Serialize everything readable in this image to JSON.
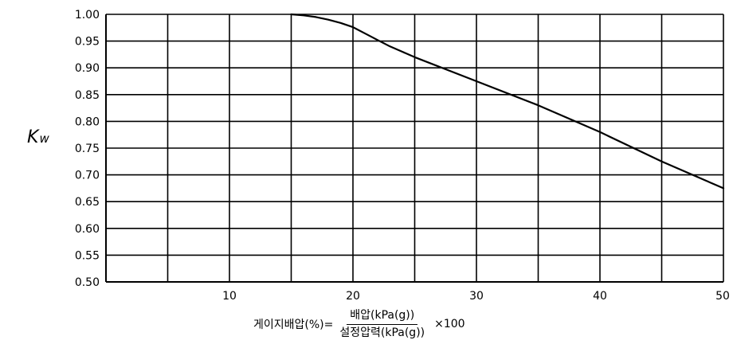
{
  "chart_data": {
    "type": "line",
    "title": "",
    "xlabel": {
      "prefix": "게이지배압(%)=",
      "numerator": "배압(kPa(g))",
      "denominator": "설정압력(kPa(g))",
      "suffix": "×100"
    },
    "ylabel": {
      "main": "K",
      "sub": "w"
    },
    "xlim": [
      0,
      50
    ],
    "ylim": [
      0.5,
      1.0
    ],
    "x_ticks": [
      10,
      20,
      30,
      40,
      50
    ],
    "x_grid": [
      5,
      10,
      15,
      20,
      25,
      30,
      35,
      40,
      45,
      50
    ],
    "y_ticks": [
      "0.50",
      "0.55",
      "0.60",
      "0.65",
      "0.70",
      "0.75",
      "0.80",
      "0.85",
      "0.90",
      "0.95",
      "1.00"
    ],
    "grid": true,
    "colors": {
      "line": "#000000",
      "grid": "#000000"
    },
    "series": [
      {
        "x": [
          15,
          16,
          17,
          18,
          19,
          20,
          21,
          22,
          23,
          24,
          25,
          30,
          35,
          40,
          45,
          50
        ],
        "values": [
          1.0,
          0.998,
          0.995,
          0.99,
          0.984,
          0.976,
          0.964,
          0.952,
          0.94,
          0.93,
          0.92,
          0.875,
          0.83,
          0.78,
          0.725,
          0.675
        ]
      }
    ]
  }
}
